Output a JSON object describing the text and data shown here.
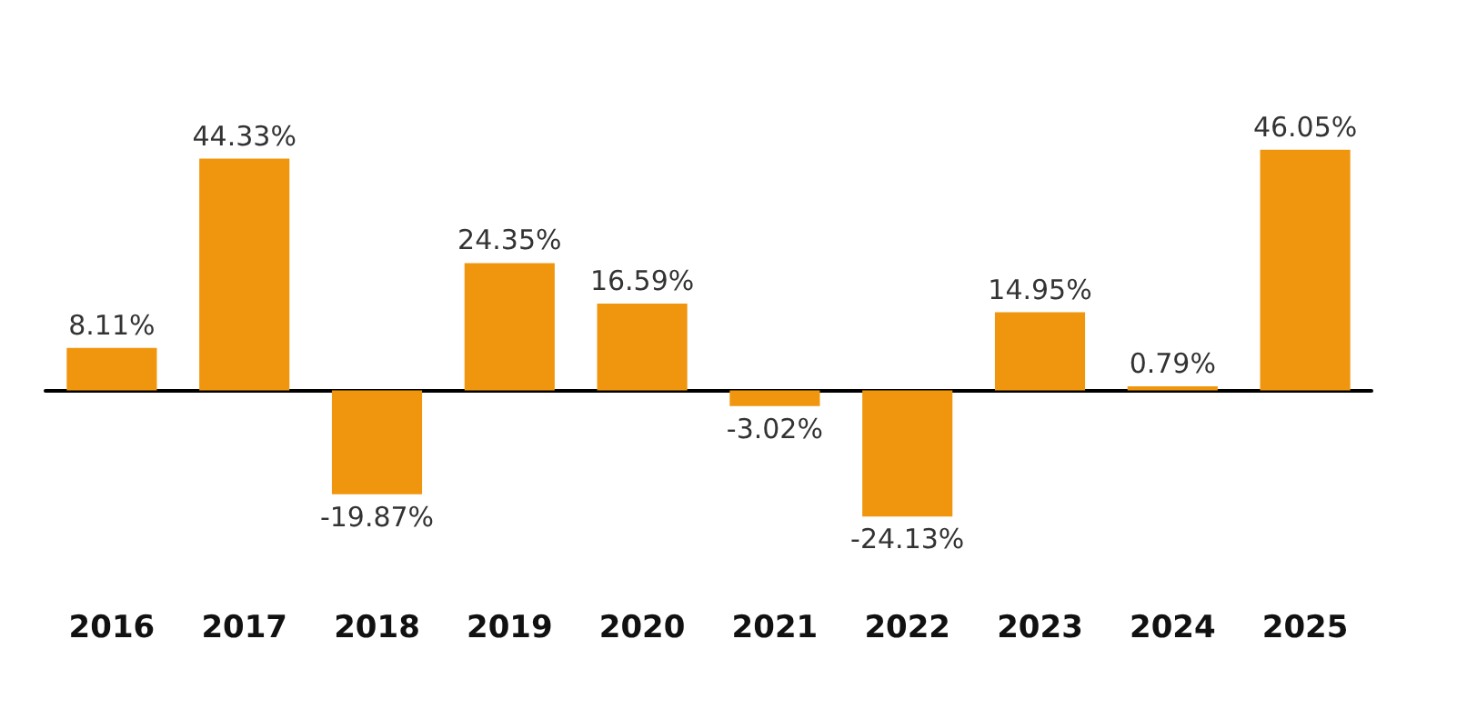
{
  "chart_data": {
    "type": "bar",
    "categories": [
      "2016",
      "2017",
      "2018",
      "2019",
      "2020",
      "2021",
      "2022",
      "2023",
      "2024",
      "2025"
    ],
    "values": [
      8.11,
      44.33,
      -19.87,
      24.35,
      16.59,
      -3.02,
      -24.13,
      14.95,
      0.79,
      46.05
    ],
    "value_labels": [
      "8.11%",
      "44.33%",
      "-19.87%",
      "24.35%",
      "16.59%",
      "-3.02%",
      "-24.13%",
      "14.95%",
      "0.79%",
      "46.05%"
    ],
    "color": "#f0960e",
    "tick_labels": "x"
  }
}
